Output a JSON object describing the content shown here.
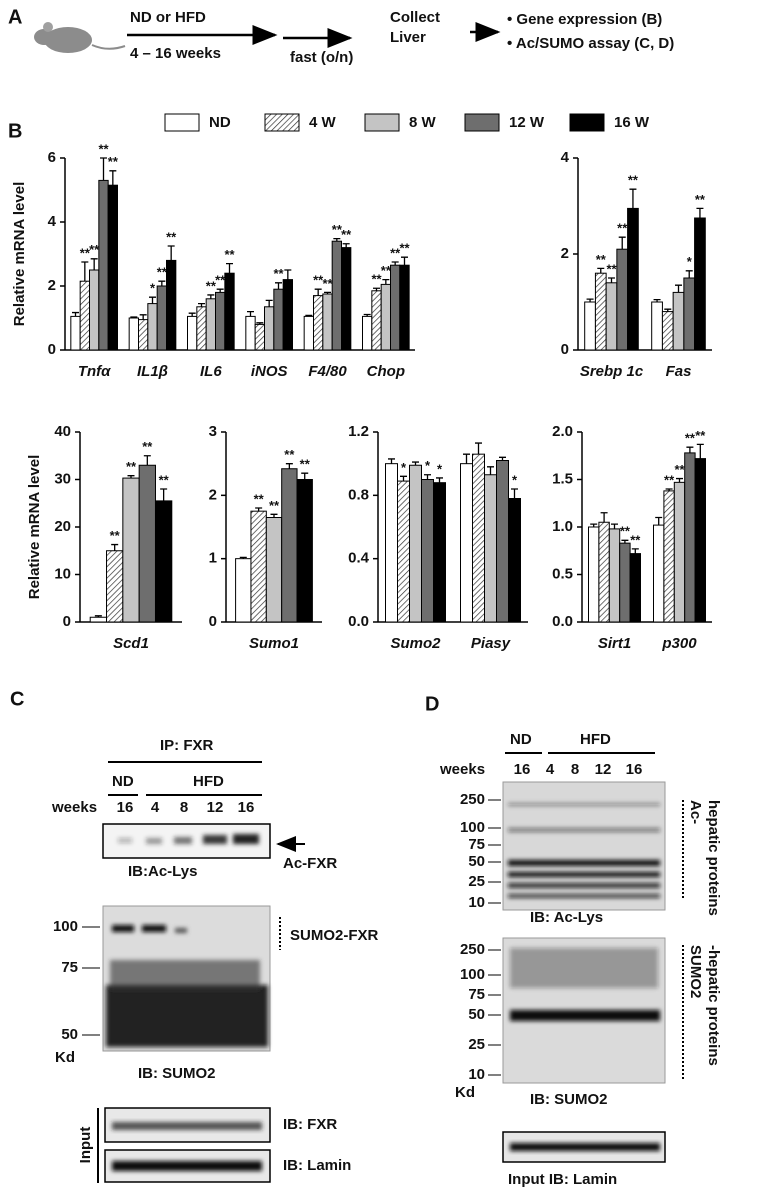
{
  "panel_a": {
    "label": "A",
    "diet": "ND or HFD",
    "duration": "4 – 16 weeks",
    "fast": "fast  (o/n)",
    "collect": [
      "Collect",
      "Liver"
    ],
    "outputs": [
      "• Gene expression (B)",
      "• Ac/SUMO assay (C, D)"
    ]
  },
  "panel_b": {
    "label": "B"
  },
  "chart_data": [
    {
      "type": "bar",
      "ylabel": "Relative mRNA level",
      "categories": [
        "Tnfα",
        "IL1β",
        "IL6",
        "iNOS",
        "F4/80",
        "Chop"
      ],
      "ylim": [
        0,
        6
      ],
      "yticks": [
        0,
        2,
        4,
        6
      ],
      "legend": "top",
      "series": [
        {
          "name": "ND",
          "color": "#ffffff",
          "values": [
            1.05,
            1.0,
            1.05,
            1.05,
            1.05,
            1.05
          ],
          "errors": [
            0.12,
            0.03,
            0.1,
            0.15,
            0.03,
            0.06
          ],
          "significance": [
            null,
            null,
            null,
            null,
            null,
            null
          ]
        },
        {
          "name": "4 W",
          "color": "#ffffff",
          "pattern": "hatch",
          "values": [
            2.15,
            0.95,
            1.35,
            0.8,
            1.7,
            1.85
          ],
          "errors": [
            0.6,
            0.15,
            0.1,
            0.05,
            0.2,
            0.08
          ],
          "significance": [
            "**",
            null,
            null,
            null,
            "**",
            "**"
          ]
        },
        {
          "name": "8 W",
          "color": "#c4c4c4",
          "values": [
            2.5,
            1.45,
            1.6,
            1.35,
            1.75,
            2.05
          ],
          "errors": [
            0.35,
            0.2,
            0.12,
            0.2,
            0.05,
            0.15
          ],
          "significance": [
            "**",
            "*",
            "**",
            null,
            "**",
            "**"
          ]
        },
        {
          "name": "12 W",
          "color": "#6e6e6e",
          "values": [
            5.3,
            2.0,
            1.8,
            1.9,
            3.4,
            2.65
          ],
          "errors": [
            0.7,
            0.15,
            0.1,
            0.2,
            0.08,
            0.1
          ],
          "significance": [
            "**",
            "**",
            "**",
            "**",
            "**",
            "**"
          ]
        },
        {
          "name": "16 W",
          "color": "#000000",
          "values": [
            5.15,
            2.8,
            2.4,
            2.2,
            3.2,
            2.65
          ],
          "errors": [
            0.45,
            0.45,
            0.3,
            0.3,
            0.12,
            0.25
          ],
          "significance": [
            "**",
            "**",
            "**",
            null,
            "**",
            "**"
          ]
        }
      ]
    },
    {
      "type": "bar",
      "categories": [
        "Srebp 1c",
        "Fas"
      ],
      "ylim": [
        0,
        4
      ],
      "yticks": [
        0,
        2,
        4
      ],
      "series": [
        {
          "color": "#ffffff",
          "values": [
            1.0,
            1.0
          ],
          "errors": [
            0.06,
            0.05
          ],
          "significance": [
            null,
            null
          ]
        },
        {
          "color": "#ffffff",
          "pattern": "hatch",
          "values": [
            1.6,
            0.8
          ],
          "errors": [
            0.1,
            0.05
          ],
          "significance": [
            "**",
            null
          ]
        },
        {
          "color": "#c4c4c4",
          "values": [
            1.4,
            1.2
          ],
          "errors": [
            0.1,
            0.15
          ],
          "significance": [
            "**",
            null
          ]
        },
        {
          "color": "#6e6e6e",
          "values": [
            2.1,
            1.5
          ],
          "errors": [
            0.25,
            0.15
          ],
          "significance": [
            "**",
            "*"
          ]
        },
        {
          "color": "#000000",
          "values": [
            2.95,
            2.75
          ],
          "errors": [
            0.4,
            0.2
          ],
          "significance": [
            "**",
            "**"
          ]
        }
      ]
    },
    {
      "type": "bar",
      "ylabel": "Relative mRNA level",
      "categories": [
        "Scd1"
      ],
      "ylim": [
        0,
        40
      ],
      "yticks": [
        0,
        10,
        20,
        30,
        40
      ],
      "series": [
        {
          "color": "#ffffff",
          "values": [
            1
          ],
          "errors": [
            0.3
          ],
          "significance": [
            null
          ]
        },
        {
          "color": "#ffffff",
          "pattern": "hatch",
          "values": [
            15
          ],
          "errors": [
            1.3
          ],
          "significance": [
            "**"
          ]
        },
        {
          "color": "#c4c4c4",
          "values": [
            30.3
          ],
          "errors": [
            0.5
          ],
          "significance": [
            "**"
          ]
        },
        {
          "color": "#6e6e6e",
          "values": [
            33
          ],
          "errors": [
            2
          ],
          "significance": [
            "**"
          ]
        },
        {
          "color": "#000000",
          "values": [
            25.5
          ],
          "errors": [
            2.5
          ],
          "significance": [
            "**"
          ]
        }
      ]
    },
    {
      "type": "bar",
      "categories": [
        "Sumo1"
      ],
      "ylim": [
        0,
        3
      ],
      "yticks": [
        0,
        1,
        2,
        3
      ],
      "series": [
        {
          "color": "#ffffff",
          "values": [
            1.0
          ],
          "errors": [
            0.02
          ],
          "significance": [
            null
          ]
        },
        {
          "color": "#ffffff",
          "pattern": "hatch",
          "values": [
            1.75
          ],
          "errors": [
            0.05
          ],
          "significance": [
            "**"
          ]
        },
        {
          "color": "#c4c4c4",
          "values": [
            1.65
          ],
          "errors": [
            0.05
          ],
          "significance": [
            "**"
          ]
        },
        {
          "color": "#6e6e6e",
          "values": [
            2.42
          ],
          "errors": [
            0.08
          ],
          "significance": [
            "**"
          ]
        },
        {
          "color": "#000000",
          "values": [
            2.25
          ],
          "errors": [
            0.1
          ],
          "significance": [
            "**"
          ]
        }
      ]
    },
    {
      "type": "bar",
      "categories": [
        "Sumo2",
        "Piasy"
      ],
      "ylim": [
        0,
        1.2
      ],
      "yticks": [
        {
          "value": 0,
          "label": "0.0"
        },
        0.4,
        0.8,
        1.2
      ],
      "series": [
        {
          "color": "#ffffff",
          "values": [
            1.0,
            1.0
          ],
          "errors": [
            0.03,
            0.06
          ],
          "significance": [
            null,
            null
          ]
        },
        {
          "color": "#ffffff",
          "pattern": "hatch",
          "values": [
            0.89,
            1.06
          ],
          "errors": [
            0.03,
            0.07
          ],
          "significance": [
            "*",
            null
          ]
        },
        {
          "color": "#c4c4c4",
          "values": [
            0.99,
            0.93
          ],
          "errors": [
            0.02,
            0.05
          ],
          "significance": [
            null,
            null
          ]
        },
        {
          "color": "#6e6e6e",
          "values": [
            0.9,
            1.02
          ],
          "errors": [
            0.03,
            0.02
          ],
          "significance": [
            "*",
            null
          ]
        },
        {
          "color": "#000000",
          "values": [
            0.88,
            0.78
          ],
          "errors": [
            0.03,
            0.06
          ],
          "significance": [
            "*",
            "*"
          ]
        }
      ]
    },
    {
      "type": "bar",
      "categories": [
        "Sirt1",
        "p300"
      ],
      "ylim": [
        0,
        2
      ],
      "yticks": [
        {
          "value": 0,
          "label": "0.0"
        },
        0.5,
        {
          "value": 1,
          "label": "1.0"
        },
        1.5,
        {
          "value": 2,
          "label": "2.0"
        }
      ],
      "series": [
        {
          "color": "#ffffff",
          "values": [
            1.0,
            1.02
          ],
          "errors": [
            0.03,
            0.08
          ],
          "significance": [
            null,
            null
          ]
        },
        {
          "color": "#ffffff",
          "pattern": "hatch",
          "values": [
            1.05,
            1.38
          ],
          "errors": [
            0.1,
            0.02
          ],
          "significance": [
            null,
            "**"
          ]
        },
        {
          "color": "#c4c4c4",
          "values": [
            0.98,
            1.47
          ],
          "errors": [
            0.05,
            0.04
          ],
          "significance": [
            null,
            "**"
          ]
        },
        {
          "color": "#6e6e6e",
          "values": [
            0.83,
            1.78
          ],
          "errors": [
            0.03,
            0.06
          ],
          "significance": [
            "**",
            "**"
          ]
        },
        {
          "color": "#000000",
          "values": [
            0.72,
            1.72
          ],
          "errors": [
            0.05,
            0.15
          ],
          "significance": [
            "**",
            "**"
          ]
        }
      ]
    }
  ],
  "panel_c": {
    "label": "C",
    "ip": "IP: FXR",
    "groups": [
      "ND",
      "HFD"
    ],
    "weeks_label": "weeks",
    "weeks": [
      16,
      4,
      8,
      12,
      16
    ],
    "ac_blot": {
      "arrow_label": "Ac-FXR",
      "ib": "IB:Ac-Lys"
    },
    "sumo_blot": {
      "markers": [
        100,
        75,
        50
      ],
      "unit": "Kd",
      "band_label": "SUMO2-FXR",
      "ib": "IB: SUMO2"
    },
    "input": {
      "label": "Input",
      "ib": [
        "IB: FXR",
        "IB: Lamin"
      ]
    }
  },
  "panel_d": {
    "label": "D",
    "groups": [
      "ND",
      "HFD"
    ],
    "weeks_label": "weeks",
    "weeks": [
      16,
      4,
      8,
      12,
      16
    ],
    "ac_blot": {
      "markers": [
        250,
        100,
        75,
        50,
        25,
        10
      ],
      "side_label": [
        "Ac-",
        "hepatic proteins"
      ],
      "ib": "IB: Ac-Lys"
    },
    "sumo_blot": {
      "markers": [
        250,
        100,
        75,
        50,
        25,
        10
      ],
      "unit": "Kd",
      "side_label": [
        "SUMO2",
        "-hepatic proteins"
      ],
      "ib": "IB: SUMO2"
    },
    "input": {
      "label": "Input  IB: Lamin"
    }
  }
}
